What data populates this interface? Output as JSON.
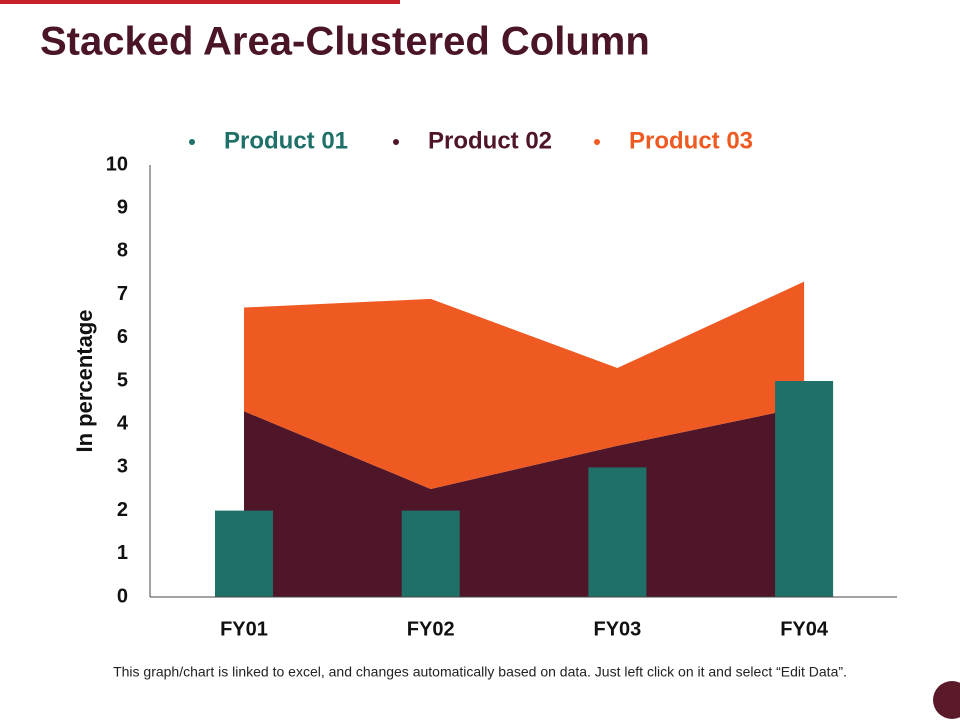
{
  "chart_data": {
    "type": "combo",
    "title": "Stacked Area-Clustered Column",
    "ylabel": "In percentage",
    "note": "This graph/chart is linked to excel, and changes automatically based on data. Just left click on it and select “Edit Data”.",
    "categories": [
      "FY01",
      "FY02",
      "FY03",
      "FY04"
    ],
    "series": [
      {
        "name": "Product 01",
        "type": "bar",
        "color": "#1e7068",
        "values": [
          2,
          2,
          3,
          5
        ]
      },
      {
        "name": "Product 02",
        "type": "area",
        "color": "#4f1528",
        "values": [
          4.3,
          2.5,
          3.5,
          4.4
        ]
      },
      {
        "name": "Product 03",
        "type": "area",
        "color": "#ee5a21",
        "values": [
          2.4,
          4.4,
          1.8,
          2.9
        ]
      }
    ],
    "ylim": [
      0,
      10
    ],
    "yticks": [
      0,
      1,
      2,
      3,
      4,
      5,
      6,
      7,
      8,
      9,
      10
    ],
    "grid": false,
    "legend": "top"
  }
}
